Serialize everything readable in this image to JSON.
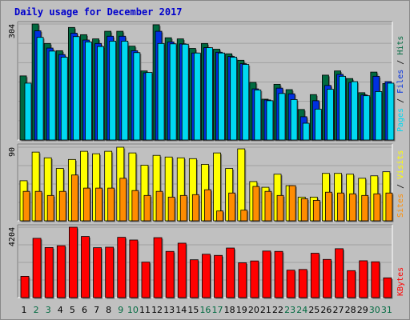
{
  "title": "Daily usage for December 2017",
  "colors": {
    "hits": "#006a40",
    "files": "#0030e0",
    "pages": "#00d8f0",
    "visits": "#ffff00",
    "sites": "#ff8c00",
    "kbytes": "#ff0000",
    "weekend": "#006a40",
    "weekday": "#000000"
  },
  "chart_data": [
    {
      "type": "bar",
      "panel": "hits-files-pages",
      "ymax_label": "304",
      "ylim": [
        0,
        304
      ],
      "series": [
        {
          "name": "Hits",
          "values": [
            168,
            304,
            253,
            234,
            295,
            276,
            265,
            285,
            285,
            246,
            181,
            302,
            268,
            265,
            240,
            253,
            238,
            226,
            209,
            151,
            107,
            146,
            132,
            80,
            119,
            170,
            181,
            161,
            124,
            178,
            148
          ]
        },
        {
          "name": "Files",
          "values": null
        },
        {
          "name": "Pages",
          "values": null
        }
      ],
      "categories": [
        "1",
        "2",
        "3",
        "4",
        "5",
        "6",
        "7",
        "8",
        "9",
        "10",
        "11",
        "12",
        "13",
        "14",
        "15",
        "16",
        "17",
        "18",
        "19",
        "20",
        "21",
        "22",
        "23",
        "24",
        "25",
        "26",
        "27",
        "28",
        "29",
        "30",
        "31"
      ],
      "weekend_days": [
        "2",
        "3",
        "9",
        "10",
        "16",
        "17",
        "23",
        "24",
        "30",
        "31"
      ]
    },
    {
      "type": "bar",
      "panel": "visits-sites",
      "ymax_label": "90",
      "ylim": [
        0,
        90
      ],
      "series": [
        {
          "name": "Visits",
          "values": null
        },
        {
          "name": "Sites",
          "values": null
        }
      ]
    },
    {
      "type": "bar",
      "panel": "kbytes",
      "ymax_label": "4204",
      "ylim": [
        0,
        4204
      ],
      "series": [
        {
          "name": "KBytes",
          "values": null
        }
      ]
    }
  ],
  "legends": {
    "top": [
      "Hits",
      "Files",
      "Pages"
    ],
    "middle": [
      "Visits",
      "Sites"
    ],
    "bottom": [
      "KBytes"
    ]
  }
}
